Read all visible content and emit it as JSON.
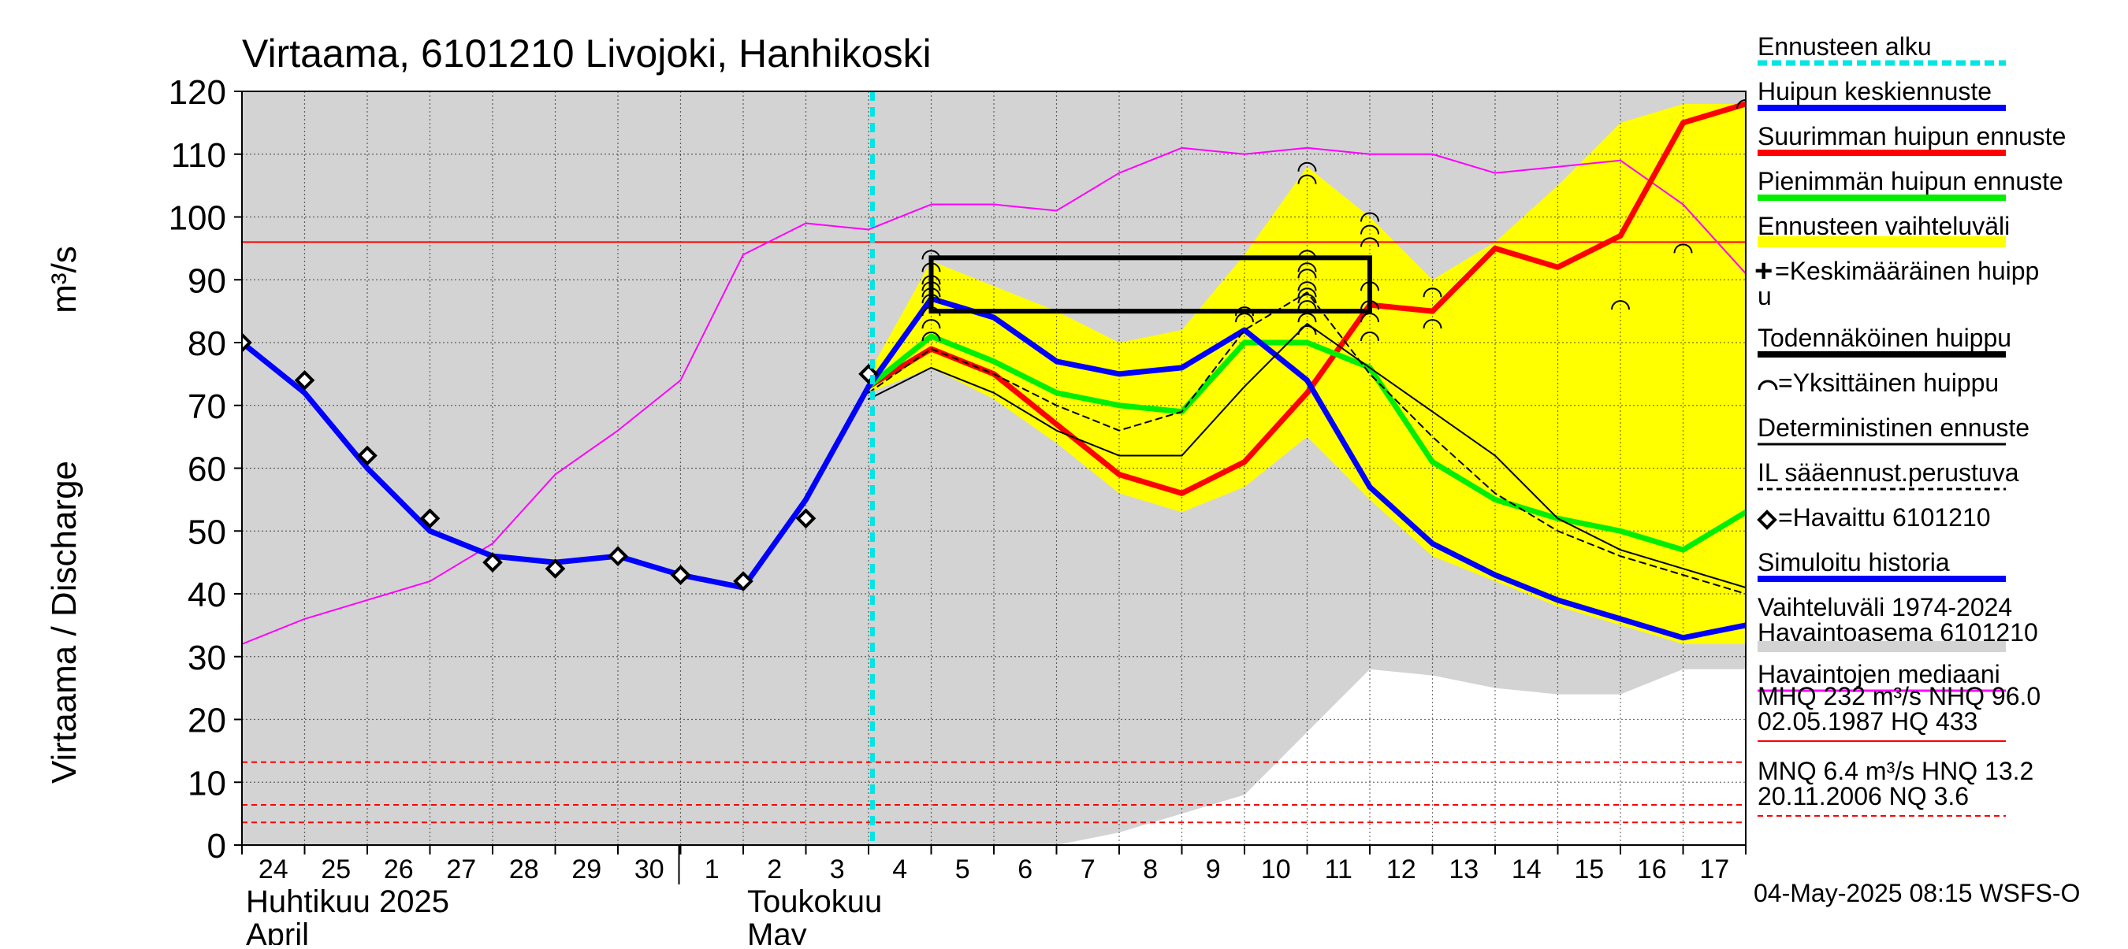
{
  "chart_data": {
    "type": "line",
    "title": "Virtaama, 6101210 Livojoki, Hanhikoski",
    "ylabel": "Virtaama / Discharge",
    "yunit": "m³/s",
    "ylim": [
      0,
      120
    ],
    "yticks": [
      0,
      10,
      20,
      30,
      40,
      50,
      60,
      70,
      80,
      90,
      100,
      110,
      120
    ],
    "grid": true,
    "xlim": [
      0,
      24
    ],
    "x_tick_labels": [
      "24",
      "25",
      "26",
      "27",
      "28",
      "29",
      "30",
      "1",
      "2",
      "3",
      "4",
      "5",
      "6",
      "7",
      "8",
      "9",
      "10",
      "11",
      "12",
      "13",
      "14",
      "15",
      "16",
      "17"
    ],
    "month_labels": [
      {
        "fi": "Huhtikuu 2025",
        "en": "April",
        "day_index": 0
      },
      {
        "fi": "Toukokuu",
        "en": "May",
        "day_index": 8
      }
    ],
    "forecast_start_day": 10,
    "hist_range_upper": [
      120,
      120,
      120,
      120,
      120,
      120,
      120,
      120,
      120,
      120,
      120,
      120,
      120,
      120,
      120,
      120,
      120,
      120,
      120,
      120,
      120,
      120,
      120,
      120
    ],
    "hist_range_lower": [
      0,
      0,
      0,
      0,
      0,
      0,
      0,
      0,
      0,
      0,
      0,
      0,
      0,
      0,
      2,
      5,
      8,
      18,
      28,
      27,
      25,
      24,
      24,
      28
    ],
    "forecast_band_upper": [
      null,
      null,
      null,
      null,
      null,
      null,
      null,
      null,
      null,
      null,
      75,
      93,
      89,
      85,
      80,
      82,
      94,
      108,
      100,
      90,
      96,
      105,
      115,
      118
    ],
    "forecast_band_lower": [
      null,
      null,
      null,
      null,
      null,
      null,
      null,
      null,
      null,
      null,
      72,
      76,
      71,
      64,
      56,
      53,
      57,
      65,
      55,
      46,
      42,
      38,
      35,
      32
    ],
    "legend_entries": [
      {
        "label": "Ennusteen alku",
        "color": "#00e5e5",
        "style": "dotted"
      },
      {
        "label": "Huipun keskiennuste",
        "color": "#0000ff",
        "style": "thick"
      },
      {
        "label": "Suurimman huipun ennuste",
        "color": "#ff0000",
        "style": "thick"
      },
      {
        "label": "Pienimmän huipun ennuste",
        "color": "#00ee00",
        "style": "thick"
      },
      {
        "label": "Ennusteen vaihteluväli",
        "color": "#ffff00",
        "style": "band"
      },
      {
        "label": "=Keskimääräinen huipp",
        "label2": "u",
        "color": "#000000",
        "style": "cross"
      },
      {
        "label": "Todennäköinen huippu",
        "color": "#000000",
        "style": "thick"
      },
      {
        "label": "=Yksittäinen huippu",
        "color": "#000000",
        "style": "arc"
      },
      {
        "label": "Deterministinen ennuste",
        "color": "#000000",
        "style": "thin"
      },
      {
        "label": "IL sääennust.perustuva",
        "color": "#000000",
        "style": "dashed"
      },
      {
        "label": "=Havaittu 6101210",
        "color": "#000000",
        "style": "diamond"
      },
      {
        "label": "Simuloitu historia",
        "color": "#0000ff",
        "style": "thick"
      },
      {
        "label": "Vaihteluväli 1974-2024",
        "label2": " Havaintoasema 6101210",
        "color": "#d3d3d3",
        "style": "band"
      },
      {
        "label": "Havaintojen mediaani",
        "color": "#ff00ff",
        "style": "thin"
      }
    ],
    "stats": [
      {
        "line1": "MHQ  232 m³/s NHQ 96.0",
        "line2": "02.05.1987 HQ  433"
      },
      {
        "line1": "MNQ  6.4 m³/s HNQ 13.2",
        "line2": "20.11.2006 NQ  3.6"
      }
    ],
    "reference_lines": [
      {
        "name": "NHQ",
        "value": 96.0,
        "color": "#ff0000",
        "style": "solid"
      },
      {
        "name": "HNQ",
        "value": 13.2,
        "color": "#ff0000",
        "style": "dashed"
      },
      {
        "name": "MNQ",
        "value": 6.4,
        "color": "#ff0000",
        "style": "dashed"
      },
      {
        "name": "NQ",
        "value": 3.6,
        "color": "#ff0000",
        "style": "dashed"
      }
    ],
    "series": [
      {
        "key": "median",
        "color": "#ff00ff",
        "width": 2,
        "points": [
          [
            0,
            32
          ],
          [
            1,
            36
          ],
          [
            2,
            39
          ],
          [
            3,
            42
          ],
          [
            4,
            48
          ],
          [
            5,
            59
          ],
          [
            6,
            66
          ],
          [
            7,
            74
          ],
          [
            8,
            94
          ],
          [
            9,
            99
          ],
          [
            10,
            98
          ],
          [
            11,
            102
          ],
          [
            12,
            102
          ],
          [
            13,
            101
          ],
          [
            14,
            107
          ],
          [
            15,
            111
          ],
          [
            16,
            110
          ],
          [
            17,
            111
          ],
          [
            18,
            110
          ],
          [
            19,
            110
          ],
          [
            20,
            107
          ],
          [
            21,
            108
          ],
          [
            22,
            109
          ],
          [
            23,
            102
          ],
          [
            24,
            91
          ]
        ]
      },
      {
        "key": "simulated-history",
        "color": "#0000ff",
        "width": 7,
        "points": [
          [
            0,
            80
          ],
          [
            1,
            72
          ],
          [
            2,
            60
          ],
          [
            3,
            50
          ],
          [
            4,
            46
          ],
          [
            5,
            45
          ],
          [
            6,
            46
          ],
          [
            7,
            43
          ],
          [
            8,
            41
          ],
          [
            9,
            55
          ],
          [
            10,
            73
          ]
        ]
      },
      {
        "key": "max-peak-forecast",
        "color": "#ff0000",
        "width": 7,
        "points": [
          [
            10,
            73
          ],
          [
            11,
            79
          ],
          [
            12,
            75
          ],
          [
            13,
            67
          ],
          [
            14,
            59
          ],
          [
            15,
            56
          ],
          [
            16,
            61
          ],
          [
            17,
            72
          ],
          [
            18,
            86
          ],
          [
            19,
            85
          ],
          [
            20,
            95
          ],
          [
            21,
            92
          ],
          [
            22,
            97
          ],
          [
            23,
            115
          ],
          [
            24,
            118
          ]
        ]
      },
      {
        "key": "min-peak-forecast",
        "color": "#00ee00",
        "width": 7,
        "points": [
          [
            10,
            73
          ],
          [
            11,
            81
          ],
          [
            12,
            77
          ],
          [
            13,
            72
          ],
          [
            14,
            70
          ],
          [
            15,
            69
          ],
          [
            16,
            80
          ],
          [
            17,
            80
          ],
          [
            18,
            76
          ],
          [
            19,
            61
          ],
          [
            20,
            55
          ],
          [
            21,
            52
          ],
          [
            22,
            50
          ],
          [
            23,
            47
          ],
          [
            24,
            53
          ]
        ]
      },
      {
        "key": "mean-peak-forecast",
        "color": "#0000ff",
        "width": 7,
        "points": [
          [
            10,
            73
          ],
          [
            11,
            87
          ],
          [
            12,
            84
          ],
          [
            13,
            77
          ],
          [
            14,
            75
          ],
          [
            15,
            76
          ],
          [
            16,
            82
          ],
          [
            17,
            74
          ],
          [
            18,
            57
          ],
          [
            19,
            48
          ],
          [
            20,
            43
          ],
          [
            21,
            39
          ],
          [
            22,
            36
          ],
          [
            23,
            33
          ],
          [
            24,
            35
          ]
        ]
      },
      {
        "key": "deterministic",
        "color": "#000000",
        "width": 2,
        "points": [
          [
            10,
            71
          ],
          [
            11,
            76
          ],
          [
            12,
            72
          ],
          [
            13,
            66
          ],
          [
            14,
            62
          ],
          [
            15,
            62
          ],
          [
            16,
            73
          ],
          [
            17,
            83
          ],
          [
            18,
            76
          ],
          [
            19,
            69
          ],
          [
            20,
            62
          ],
          [
            21,
            52
          ],
          [
            22,
            47
          ],
          [
            23,
            44
          ],
          [
            24,
            41
          ]
        ]
      },
      {
        "key": "weather-based",
        "color": "#000000",
        "width": 2,
        "dash": "8,6",
        "points": [
          [
            10,
            72
          ],
          [
            11,
            79
          ],
          [
            12,
            75
          ],
          [
            13,
            70
          ],
          [
            14,
            66
          ],
          [
            15,
            69
          ],
          [
            16,
            82
          ],
          [
            17,
            88
          ],
          [
            18,
            75
          ],
          [
            19,
            65
          ],
          [
            20,
            56
          ],
          [
            21,
            50
          ],
          [
            22,
            46
          ],
          [
            23,
            43
          ],
          [
            24,
            40
          ]
        ]
      }
    ],
    "observed": [
      [
        0,
        80
      ],
      [
        1,
        74
      ],
      [
        2,
        62
      ],
      [
        3,
        52
      ],
      [
        4,
        45
      ],
      [
        5,
        44
      ],
      [
        6,
        46
      ],
      [
        7,
        43
      ],
      [
        8,
        42
      ],
      [
        9,
        52
      ],
      [
        10,
        75
      ]
    ],
    "probable_peak_box": {
      "x0": 11,
      "x1": 18,
      "y0": 85,
      "y1": 93.5
    },
    "individual_peaks": [
      [
        11,
        94
      ],
      [
        11,
        92
      ],
      [
        11,
        90
      ],
      [
        11,
        89
      ],
      [
        11,
        88
      ],
      [
        11,
        87
      ],
      [
        11,
        85
      ],
      [
        11,
        83
      ],
      [
        11,
        81
      ],
      [
        16,
        85
      ],
      [
        16,
        84
      ],
      [
        17,
        108
      ],
      [
        17,
        106
      ],
      [
        17,
        94
      ],
      [
        17,
        92
      ],
      [
        17,
        91
      ],
      [
        17,
        89
      ],
      [
        17,
        88
      ],
      [
        17,
        87
      ],
      [
        17,
        86
      ],
      [
        17,
        84
      ],
      [
        17,
        82
      ],
      [
        18,
        100
      ],
      [
        18,
        98
      ],
      [
        18,
        96
      ],
      [
        18,
        89
      ],
      [
        18,
        86
      ],
      [
        18,
        84
      ],
      [
        18,
        81
      ],
      [
        19,
        88
      ],
      [
        19,
        83
      ],
      [
        22,
        86
      ],
      [
        23,
        95
      ],
      [
        24,
        118
      ]
    ],
    "footer": "04-May-2025 08:15 WSFS-O"
  }
}
